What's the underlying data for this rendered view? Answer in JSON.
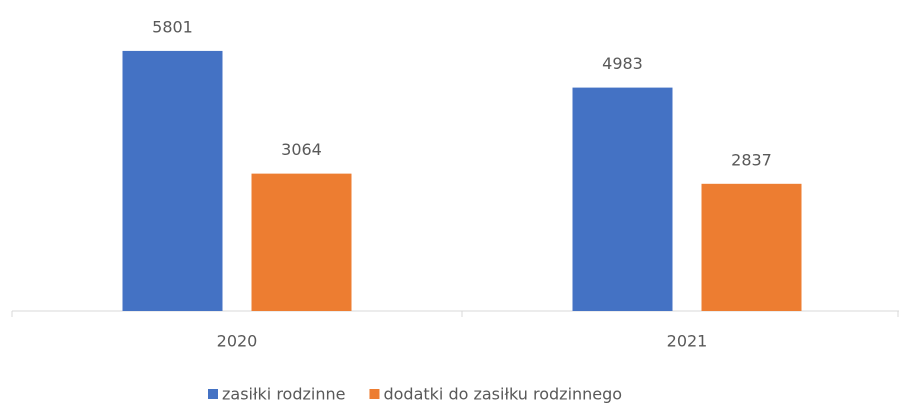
{
  "chart_data": {
    "type": "bar",
    "categories": [
      "2020",
      "2021"
    ],
    "series": [
      {
        "name": "zasiłki rodzinne",
        "color": "#4472c4",
        "values": [
          5801,
          4983
        ]
      },
      {
        "name": "dodatki do zasiłku rodzinnego",
        "color": "#ed7d31",
        "values": [
          3064,
          2837
        ]
      }
    ],
    "ylim": [
      0,
      6000
    ],
    "legend": "bottom"
  }
}
